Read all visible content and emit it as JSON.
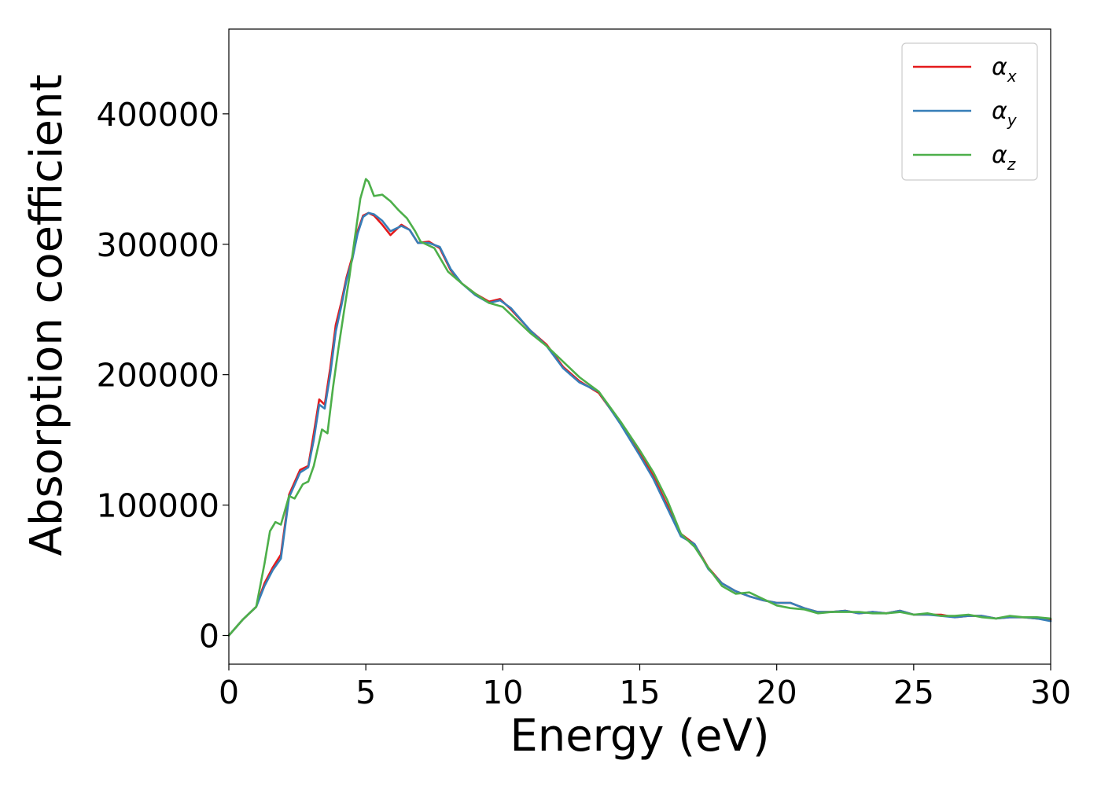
{
  "chart_data": {
    "type": "line",
    "title": "",
    "xlabel": "Energy (eV)",
    "ylabel": "Absorption coefficient",
    "xlim": [
      0,
      30
    ],
    "ylim": [
      -22000,
      465000
    ],
    "xticks": [
      0,
      5,
      10,
      15,
      20,
      25,
      30
    ],
    "yticks": [
      0,
      100000,
      200000,
      300000,
      400000
    ],
    "grid": false,
    "legend_position": "top-right",
    "series": [
      {
        "name": "α",
        "subscript": "x",
        "color": "#e41a1c",
        "points": [
          [
            0,
            0
          ],
          [
            0.5,
            12000
          ],
          [
            1.0,
            22000
          ],
          [
            1.3,
            40000
          ],
          [
            1.6,
            52000
          ],
          [
            1.9,
            62000
          ],
          [
            2.2,
            108000
          ],
          [
            2.6,
            127000
          ],
          [
            2.9,
            130000
          ],
          [
            3.1,
            155000
          ],
          [
            3.3,
            181000
          ],
          [
            3.5,
            177000
          ],
          [
            3.7,
            205000
          ],
          [
            3.9,
            238000
          ],
          [
            4.1,
            255000
          ],
          [
            4.3,
            275000
          ],
          [
            4.5,
            290000
          ],
          [
            4.7,
            310000
          ],
          [
            4.9,
            322000
          ],
          [
            5.1,
            324000
          ],
          [
            5.3,
            322000
          ],
          [
            5.6,
            315000
          ],
          [
            5.9,
            307000
          ],
          [
            6.3,
            315000
          ],
          [
            6.6,
            311000
          ],
          [
            6.9,
            301000
          ],
          [
            7.3,
            302000
          ],
          [
            7.7,
            297000
          ],
          [
            8.1,
            280000
          ],
          [
            8.5,
            270000
          ],
          [
            9.0,
            262000
          ],
          [
            9.5,
            256000
          ],
          [
            9.9,
            258000
          ],
          [
            10.3,
            250000
          ],
          [
            11.0,
            234000
          ],
          [
            11.6,
            223000
          ],
          [
            12.2,
            206000
          ],
          [
            12.8,
            195000
          ],
          [
            13.5,
            186000
          ],
          [
            14.3,
            163000
          ],
          [
            15.0,
            140000
          ],
          [
            15.5,
            122000
          ],
          [
            16.0,
            100000
          ],
          [
            16.5,
            78000
          ],
          [
            17.0,
            70000
          ],
          [
            17.5,
            52000
          ],
          [
            18.0,
            40000
          ],
          [
            18.5,
            34000
          ],
          [
            19.0,
            30000
          ],
          [
            19.5,
            27000
          ],
          [
            20.0,
            25000
          ],
          [
            20.5,
            25000
          ],
          [
            21.0,
            21000
          ],
          [
            21.5,
            18000
          ],
          [
            22.0,
            18000
          ],
          [
            22.5,
            19000
          ],
          [
            23.0,
            17000
          ],
          [
            23.5,
            18000
          ],
          [
            24.0,
            17000
          ],
          [
            24.5,
            19000
          ],
          [
            25.0,
            16000
          ],
          [
            25.5,
            16000
          ],
          [
            26.0,
            16000
          ],
          [
            26.5,
            14000
          ],
          [
            27.0,
            15000
          ],
          [
            27.5,
            15000
          ],
          [
            28.0,
            13000
          ],
          [
            28.5,
            14000
          ],
          [
            29.0,
            14000
          ],
          [
            29.5,
            13000
          ],
          [
            30.0,
            12000
          ]
        ]
      },
      {
        "name": "α",
        "subscript": "y",
        "color": "#377eb8",
        "points": [
          [
            0,
            0
          ],
          [
            0.5,
            12000
          ],
          [
            1.0,
            22000
          ],
          [
            1.3,
            38000
          ],
          [
            1.6,
            50000
          ],
          [
            1.9,
            59000
          ],
          [
            2.2,
            106000
          ],
          [
            2.6,
            125000
          ],
          [
            2.9,
            129000
          ],
          [
            3.1,
            150000
          ],
          [
            3.3,
            177000
          ],
          [
            3.5,
            174000
          ],
          [
            3.7,
            200000
          ],
          [
            3.9,
            233000
          ],
          [
            4.1,
            252000
          ],
          [
            4.3,
            273000
          ],
          [
            4.5,
            288000
          ],
          [
            4.7,
            308000
          ],
          [
            4.9,
            321000
          ],
          [
            5.1,
            324000
          ],
          [
            5.3,
            323000
          ],
          [
            5.6,
            318000
          ],
          [
            5.9,
            310000
          ],
          [
            6.3,
            314000
          ],
          [
            6.6,
            311000
          ],
          [
            6.9,
            301000
          ],
          [
            7.3,
            301000
          ],
          [
            7.7,
            298000
          ],
          [
            8.1,
            281000
          ],
          [
            8.5,
            270000
          ],
          [
            9.0,
            261000
          ],
          [
            9.5,
            255000
          ],
          [
            9.9,
            257000
          ],
          [
            10.3,
            251000
          ],
          [
            11.0,
            234000
          ],
          [
            11.6,
            222000
          ],
          [
            12.2,
            205000
          ],
          [
            12.8,
            194000
          ],
          [
            13.5,
            187000
          ],
          [
            14.3,
            162000
          ],
          [
            15.0,
            138000
          ],
          [
            15.5,
            120000
          ],
          [
            16.0,
            98000
          ],
          [
            16.5,
            76000
          ],
          [
            17.0,
            70000
          ],
          [
            17.5,
            51000
          ],
          [
            18.0,
            40000
          ],
          [
            18.5,
            34000
          ],
          [
            19.0,
            30000
          ],
          [
            19.5,
            27000
          ],
          [
            20.0,
            25000
          ],
          [
            20.5,
            25000
          ],
          [
            21.0,
            21000
          ],
          [
            21.5,
            18000
          ],
          [
            22.0,
            18000
          ],
          [
            22.5,
            19000
          ],
          [
            23.0,
            17000
          ],
          [
            23.5,
            18000
          ],
          [
            24.0,
            17000
          ],
          [
            24.5,
            19000
          ],
          [
            25.0,
            16000
          ],
          [
            25.5,
            16000
          ],
          [
            26.0,
            15000
          ],
          [
            26.5,
            14000
          ],
          [
            27.0,
            15000
          ],
          [
            27.5,
            15000
          ],
          [
            28.0,
            13000
          ],
          [
            28.5,
            14000
          ],
          [
            29.0,
            14000
          ],
          [
            29.5,
            13000
          ],
          [
            30.0,
            11000
          ]
        ]
      },
      {
        "name": "α",
        "subscript": "z",
        "color": "#4daf4a",
        "points": [
          [
            0,
            0
          ],
          [
            0.5,
            12000
          ],
          [
            1.0,
            22000
          ],
          [
            1.3,
            55000
          ],
          [
            1.5,
            80000
          ],
          [
            1.7,
            87000
          ],
          [
            1.9,
            85000
          ],
          [
            2.2,
            107000
          ],
          [
            2.4,
            105000
          ],
          [
            2.7,
            116000
          ],
          [
            2.9,
            118000
          ],
          [
            3.1,
            130000
          ],
          [
            3.4,
            158000
          ],
          [
            3.6,
            155000
          ],
          [
            3.8,
            190000
          ],
          [
            4.0,
            220000
          ],
          [
            4.2,
            248000
          ],
          [
            4.4,
            275000
          ],
          [
            4.6,
            305000
          ],
          [
            4.8,
            335000
          ],
          [
            5.0,
            350000
          ],
          [
            5.1,
            348000
          ],
          [
            5.3,
            337000
          ],
          [
            5.6,
            338000
          ],
          [
            5.9,
            333000
          ],
          [
            6.2,
            326000
          ],
          [
            6.5,
            320000
          ],
          [
            6.8,
            310000
          ],
          [
            7.0,
            302000
          ],
          [
            7.5,
            297000
          ],
          [
            8.0,
            279000
          ],
          [
            8.5,
            270000
          ],
          [
            9.0,
            262000
          ],
          [
            9.5,
            255000
          ],
          [
            10.0,
            252000
          ],
          [
            10.5,
            242000
          ],
          [
            11.0,
            232000
          ],
          [
            11.6,
            222000
          ],
          [
            12.2,
            210000
          ],
          [
            12.8,
            198000
          ],
          [
            13.5,
            187000
          ],
          [
            14.3,
            164000
          ],
          [
            15.0,
            142000
          ],
          [
            15.5,
            125000
          ],
          [
            16.0,
            104000
          ],
          [
            16.5,
            78000
          ],
          [
            17.0,
            68000
          ],
          [
            17.5,
            52000
          ],
          [
            18.0,
            38000
          ],
          [
            18.5,
            32000
          ],
          [
            19.0,
            33000
          ],
          [
            19.5,
            28000
          ],
          [
            20.0,
            23000
          ],
          [
            20.5,
            21000
          ],
          [
            21.0,
            20000
          ],
          [
            21.5,
            17000
          ],
          [
            22.0,
            18000
          ],
          [
            22.5,
            18000
          ],
          [
            23.0,
            18000
          ],
          [
            23.5,
            17000
          ],
          [
            24.0,
            17000
          ],
          [
            24.5,
            18000
          ],
          [
            25.0,
            16000
          ],
          [
            25.5,
            17000
          ],
          [
            26.0,
            15000
          ],
          [
            26.5,
            15000
          ],
          [
            27.0,
            16000
          ],
          [
            27.5,
            14000
          ],
          [
            28.0,
            13000
          ],
          [
            28.5,
            15000
          ],
          [
            29.0,
            14000
          ],
          [
            29.5,
            14000
          ],
          [
            30.0,
            13000
          ]
        ]
      }
    ]
  }
}
